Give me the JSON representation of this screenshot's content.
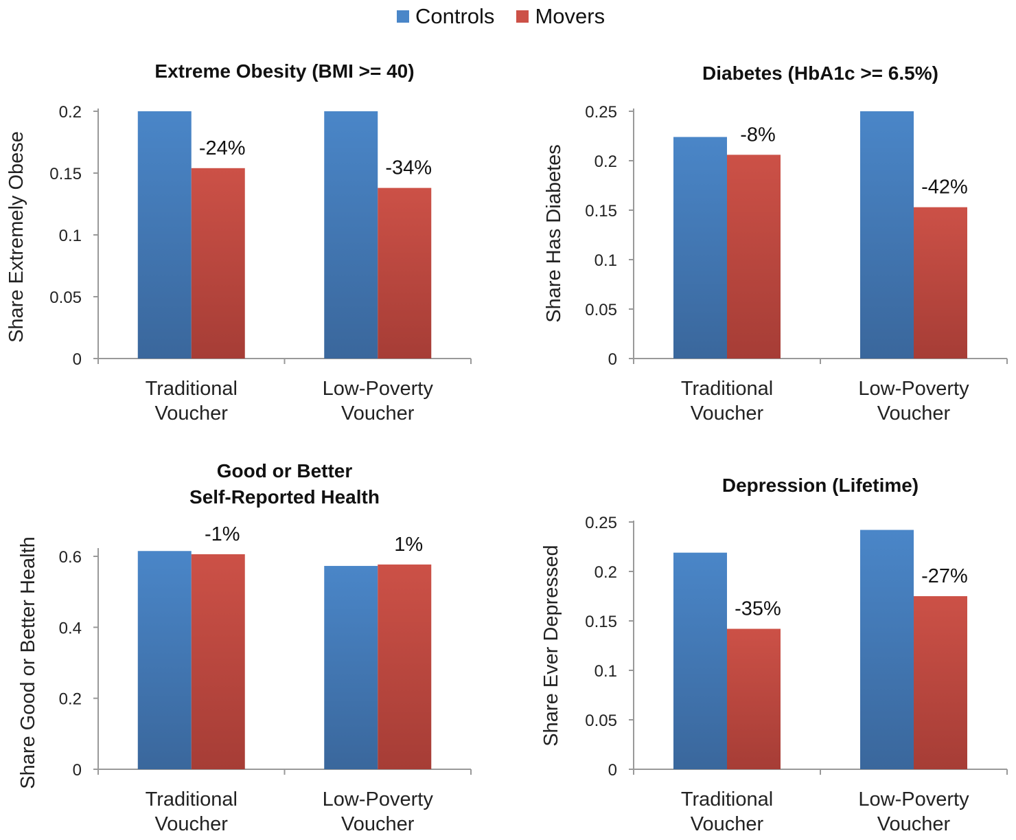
{
  "legend": {
    "controls": "Controls",
    "movers": "Movers"
  },
  "colors": {
    "controls": "#4a86c8",
    "controls_dark": "#3a679c",
    "movers": "#cc5147",
    "movers_dark": "#a63d36"
  },
  "chart_data": [
    {
      "type": "bar",
      "title": [
        "Extreme Obesity (BMI >= 40)"
      ],
      "ylabel": "Share Extremely Obese",
      "categories": [
        [
          "Traditional",
          "Voucher"
        ],
        [
          "Low-Poverty",
          "Voucher"
        ]
      ],
      "ylim": [
        0,
        0.2
      ],
      "yticks": [
        "0",
        "0.05",
        "0.1",
        "0.15",
        "0.2"
      ],
      "ytick_values": [
        0,
        0.05,
        0.1,
        0.15,
        0.2
      ],
      "series": [
        {
          "name": "Controls",
          "values": [
            0.203,
            0.209
          ]
        },
        {
          "name": "Movers",
          "values": [
            0.154,
            0.138
          ]
        }
      ],
      "annotations": [
        "-24%",
        "-34%"
      ]
    },
    {
      "type": "bar",
      "title": [
        "Diabetes (HbA1c >= 6.5%)"
      ],
      "ylabel": "Share Has Diabetes",
      "categories": [
        [
          "Traditional",
          "Voucher"
        ],
        [
          "Low-Poverty",
          "Voucher"
        ]
      ],
      "ylim": [
        0,
        0.25
      ],
      "yticks": [
        "0",
        "0.05",
        "0.1",
        "0.15",
        "0.2",
        "0.25"
      ],
      "ytick_values": [
        0,
        0.05,
        0.1,
        0.15,
        0.2,
        0.25
      ],
      "series": [
        {
          "name": "Controls",
          "values": [
            0.224,
            0.263
          ]
        },
        {
          "name": "Movers",
          "values": [
            0.206,
            0.153
          ]
        }
      ],
      "annotations": [
        "-8%",
        "-42%"
      ]
    },
    {
      "type": "bar",
      "title": [
        "Good or Better",
        "Self-Reported Health"
      ],
      "ylabel": "Share Good or Better Health",
      "categories": [
        [
          "Traditional",
          "Voucher"
        ],
        [
          "Low-Poverty",
          "Voucher"
        ]
      ],
      "ylim": [
        0,
        0.62
      ],
      "yticks": [
        "0",
        "0.2",
        "0.4",
        "0.6"
      ],
      "ytick_values": [
        0,
        0.2,
        0.4,
        0.6
      ],
      "series": [
        {
          "name": "Controls",
          "values": [
            0.615,
            0.573
          ]
        },
        {
          "name": "Movers",
          "values": [
            0.606,
            0.577
          ]
        }
      ],
      "annotations": [
        "-1%",
        "1%"
      ]
    },
    {
      "type": "bar",
      "title": [
        "Depression (Lifetime)"
      ],
      "ylabel": "Share Ever Depressed",
      "categories": [
        [
          "Traditional",
          "Voucher"
        ],
        [
          "Low-Poverty",
          "Voucher"
        ]
      ],
      "ylim": [
        0,
        0.25
      ],
      "yticks": [
        "0",
        "0.05",
        "0.1",
        "0.15",
        "0.2",
        "0.25"
      ],
      "ytick_values": [
        0,
        0.05,
        0.1,
        0.15,
        0.2,
        0.25
      ],
      "series": [
        {
          "name": "Controls",
          "values": [
            0.219,
            0.242
          ]
        },
        {
          "name": "Movers",
          "values": [
            0.142,
            0.175
          ]
        }
      ],
      "annotations": [
        "-35%",
        "-27%"
      ]
    }
  ]
}
